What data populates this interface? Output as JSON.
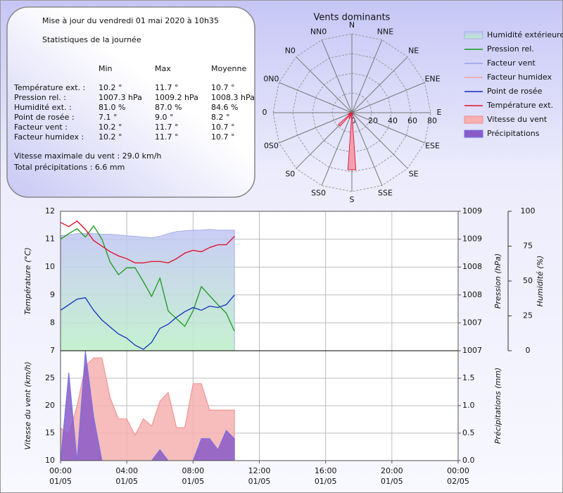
{
  "stats": {
    "updated": "Mise à jour du vendredi 01 mai 2020 à 10h35",
    "subtitle": "Statistiques de la journée",
    "headers": [
      "Min",
      "Max",
      "Moyenne"
    ],
    "rows": [
      [
        "Température ext. :",
        "10.2 °",
        "11.7 °",
        "10.7 °"
      ],
      [
        "Pression rel. :",
        "1007.3 hPa",
        "1009.2 hPa",
        "1008.3 hPa"
      ],
      [
        "Humidité ext. :",
        "81.0 %",
        "87.0 %",
        "84.6 %"
      ],
      [
        "Point de rosée :",
        "7.1 °",
        "9.0 °",
        "8.2 °"
      ],
      [
        "Facteur vent :",
        "10.2 °",
        "11.7 °",
        "10.7 °"
      ],
      [
        "Facteur humidex :",
        "10.2 °",
        "11.7 °",
        "10.7 °"
      ]
    ],
    "max_wind": "Vitesse maximale du vent : 29.0 km/h",
    "total_rain": "Total précipitations : 6.6 mm"
  },
  "chart_data": [
    {
      "type": "polar_bar",
      "title": "Vents dominants",
      "directions": [
        "N",
        "NNE",
        "NE",
        "ENE",
        "E",
        "ESE",
        "SE",
        "SSE",
        "S",
        "SS0",
        "S0",
        "0S0",
        "0",
        "0N0",
        "N0",
        "NN0"
      ],
      "values": [
        0,
        0,
        0,
        0,
        0,
        0,
        0,
        2,
        58,
        6,
        18,
        4,
        0,
        0,
        0,
        0
      ],
      "rlim": [
        0,
        80
      ],
      "rticks": [
        0,
        20,
        40,
        60,
        80
      ],
      "color": "#f0a0b0",
      "edge": "#e02040"
    },
    {
      "type": "line",
      "x": [
        0,
        0.5,
        1,
        1.5,
        2,
        2.5,
        3,
        3.5,
        4,
        4.5,
        5,
        5.5,
        6,
        6.5,
        7,
        7.5,
        8,
        8.5,
        9,
        9.5,
        10,
        10.5
      ],
      "xlim": [
        0,
        24
      ],
      "ylabel": "Température (°C)",
      "ylim": [
        7,
        12
      ],
      "yticks": [
        7,
        8,
        9,
        10,
        11,
        12
      ],
      "y2label": "Pression (hPa)",
      "y2lim": [
        1007,
        1009
      ],
      "y2ticks": [
        {
          "value": 1007,
          "label": "1007"
        },
        {
          "value": 1007.4,
          "label": "1007"
        },
        {
          "value": 1007.8,
          "label": "1008"
        },
        {
          "value": 1008.2,
          "label": "1008"
        },
        {
          "value": 1008.6,
          "label": "1009"
        },
        {
          "value": 1009,
          "label": "1009"
        }
      ],
      "y3label": "Humidité (%)",
      "y3lim": [
        0,
        100
      ],
      "y3ticks": [
        0,
        25,
        50,
        75,
        100
      ],
      "grid": true,
      "series": [
        {
          "name": "Humidité extérieure",
          "kind": "area",
          "axis": "y3",
          "color": "#a8b0e8",
          "fill": "#bcefc8",
          "fill2": "#c0c4f4",
          "values": [
            82.5,
            83,
            84,
            84,
            84,
            83.5,
            83.5,
            83,
            82.5,
            82,
            81.5,
            81,
            82,
            84,
            85.5,
            86,
            86.5,
            86.5,
            87,
            86.5,
            86.5,
            86.5
          ]
        },
        {
          "name": "Pression rel.",
          "axis": "y2",
          "color": "#1a9a1a",
          "values": [
            1008.6,
            1008.68,
            1008.75,
            1008.63,
            1008.79,
            1008.6,
            1008.27,
            1008.09,
            1008.19,
            1008.19,
            1007.99,
            1007.78,
            1008.04,
            1007.57,
            1007.46,
            1007.35,
            1007.57,
            1007.92,
            1007.79,
            1007.66,
            1007.54,
            1007.28
          ]
        },
        {
          "name": "Facteur vent",
          "color": "#9aa0e8",
          "values": [
            11.6,
            11.45,
            11.65,
            11.35,
            10.95,
            10.75,
            10.55,
            10.4,
            10.3,
            10.15,
            10.15,
            10.2,
            10.2,
            10.15,
            10.3,
            10.5,
            10.6,
            10.55,
            10.7,
            10.8,
            10.8,
            11.1
          ]
        },
        {
          "name": "Facteur humidex",
          "color": "#f4a0a0",
          "values": [
            11.6,
            11.45,
            11.65,
            11.35,
            10.95,
            10.75,
            10.55,
            10.4,
            10.3,
            10.15,
            10.15,
            10.2,
            10.2,
            10.15,
            10.3,
            10.5,
            10.6,
            10.55,
            10.7,
            10.8,
            10.8,
            11.1
          ]
        },
        {
          "name": "Point de rosée",
          "color": "#1030c0",
          "values": [
            8.45,
            8.65,
            8.85,
            8.9,
            8.45,
            8.1,
            7.85,
            7.6,
            7.45,
            7.2,
            7.05,
            7.3,
            7.8,
            7.95,
            8.2,
            8.4,
            8.55,
            8.45,
            8.6,
            8.55,
            8.65,
            9.0
          ]
        },
        {
          "name": "Température ext.",
          "color": "#e0102a",
          "values": [
            11.6,
            11.45,
            11.65,
            11.35,
            10.95,
            10.75,
            10.55,
            10.4,
            10.3,
            10.15,
            10.15,
            10.2,
            10.2,
            10.15,
            10.3,
            10.5,
            10.6,
            10.55,
            10.7,
            10.8,
            10.8,
            11.1
          ]
        }
      ]
    },
    {
      "type": "area",
      "x": [
        0,
        0.5,
        1,
        1.5,
        2,
        2.5,
        3,
        3.5,
        4,
        4.5,
        5,
        5.5,
        6,
        6.5,
        7,
        7.5,
        8,
        8.5,
        9,
        9.5,
        10,
        10.5
      ],
      "xlim": [
        0,
        24
      ],
      "xticks": [
        {
          "value": 0,
          "label": "00:00",
          "date": "01/05"
        },
        {
          "value": 4,
          "label": "04:00",
          "date": "01/05"
        },
        {
          "value": 8,
          "label": "08:00",
          "date": "01/05"
        },
        {
          "value": 12,
          "label": "12:00",
          "date": "01/05"
        },
        {
          "value": 16,
          "label": "16:00",
          "date": "01/05"
        },
        {
          "value": 20,
          "label": "20:00",
          "date": "01/05"
        },
        {
          "value": 24,
          "label": "00:00",
          "date": "02/05"
        }
      ],
      "ylabel": "Vitesse du vent (km/h)",
      "ylim": [
        10,
        30
      ],
      "yticks": [
        10,
        15,
        20,
        25
      ],
      "y2label": "Précipitations (mm)",
      "y2lim": [
        0,
        2
      ],
      "y2ticks": [
        {
          "value": 0,
          "label": "0.0"
        },
        0.5,
        {
          "value": 1,
          "label": "1.0"
        },
        1.5
      ],
      "grid": true,
      "series": [
        {
          "name": "Vitesse du vent",
          "kind": "area",
          "color": "#f08a8a",
          "fill": "#f6b0b0",
          "values": [
            16,
            14.6,
            20,
            27.2,
            28.7,
            28.7,
            21.4,
            17.6,
            17.6,
            14.6,
            17.6,
            16.3,
            20.8,
            22.4,
            16,
            16,
            24,
            24,
            19.2,
            19.2,
            19.2,
            19.2
          ]
        },
        {
          "name": "Précipitations",
          "kind": "area",
          "axis": "y2",
          "color": "#7070e8",
          "fill": "#8a5ac8",
          "values": [
            0,
            1.6,
            0,
            2.0,
            0.8,
            0,
            0,
            0,
            0,
            0,
            0,
            0,
            0.2,
            0,
            0,
            0,
            0,
            0.4,
            0.4,
            0.2,
            0.55,
            0.4
          ]
        }
      ]
    }
  ]
}
